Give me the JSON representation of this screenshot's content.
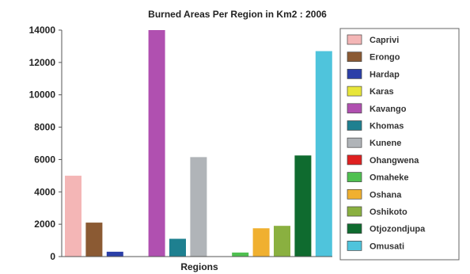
{
  "chart_data": {
    "type": "bar",
    "title": "Burned Areas Per Region in Km2 : 2006",
    "xlabel": "Regions",
    "ylabel": "",
    "ylim": [
      0,
      14000
    ],
    "yticks": [
      0,
      2000,
      4000,
      6000,
      8000,
      10000,
      12000,
      14000
    ],
    "grid": false,
    "legend_position": "right",
    "categories": [
      "Caprivi",
      "Erongo",
      "Hardap",
      "Karas",
      "Kavango",
      "Khomas",
      "Kunene",
      "Ohangwena",
      "Omaheke",
      "Oshana",
      "Oshikoto",
      "Otjozondjupa",
      "Omusati"
    ],
    "values": [
      5000,
      2100,
      300,
      0,
      14000,
      1100,
      6150,
      0,
      250,
      1750,
      1900,
      6250,
      12700
    ],
    "colors": [
      "#f4b6b6",
      "#8b5a33",
      "#2b3fa8",
      "#e8e63a",
      "#b050b0",
      "#1e8090",
      "#b0b4b8",
      "#e02020",
      "#4fc050",
      "#f0b030",
      "#8ab040",
      "#0f6b2f",
      "#4fc4dc"
    ]
  }
}
